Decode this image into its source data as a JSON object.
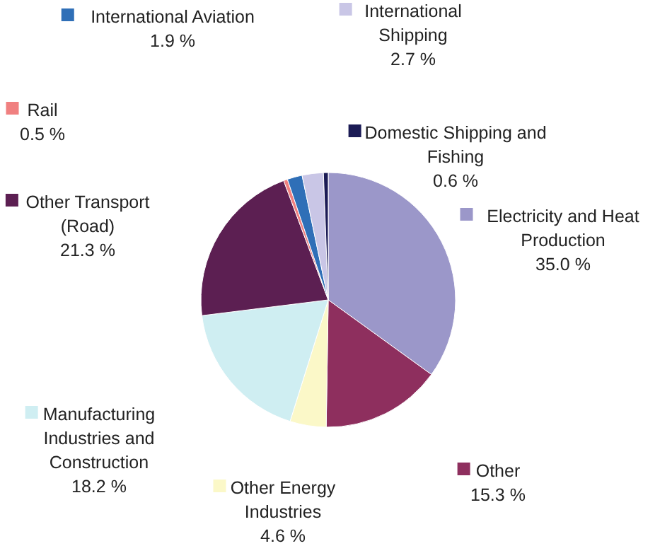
{
  "chart_data": {
    "type": "pie",
    "legend": "right",
    "categories": [
      "Electricity and Heat Production",
      "Other",
      "Other Energy Industries",
      "Manufacturing Industries and Construction",
      "Other Transport (Road)",
      "Rail",
      "International Aviation",
      "International Shipping",
      "Domestic Shipping and Fishing"
    ],
    "values": [
      35.0,
      15.3,
      4.6,
      18.2,
      21.3,
      0.5,
      1.9,
      2.7,
      0.6
    ],
    "value_labels": [
      "35.0 %",
      "15.3 %",
      "4.6 %",
      "18.2 %",
      "21.3 %",
      "0.5 %",
      "1.9 %",
      "2.7 %",
      "0.6 %"
    ],
    "colors": [
      "#9b97c9",
      "#8e2f5e",
      "#fbf8c8",
      "#cfeef2",
      "#5c1f52",
      "#f08080",
      "#2f6fb7",
      "#c9c6e6",
      "#1b1b55"
    ]
  }
}
